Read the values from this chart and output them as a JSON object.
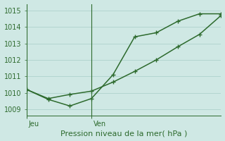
{
  "line1_x": [
    0,
    1,
    2,
    3,
    4,
    5,
    6,
    7,
    8,
    9
  ],
  "line1_y": [
    1010.2,
    1009.6,
    1009.2,
    1009.65,
    1011.1,
    1013.4,
    1013.65,
    1014.35,
    1014.8,
    1014.8
  ],
  "line2_x": [
    0,
    1,
    2,
    3,
    4,
    5,
    6,
    7,
    8,
    9
  ],
  "line2_y": [
    1010.2,
    1009.65,
    1009.9,
    1010.1,
    1010.65,
    1011.3,
    1012.0,
    1012.8,
    1013.55,
    1014.7
  ],
  "line_color": "#2d6a2d",
  "background_color": "#cfe8e4",
  "grid_color": "#a8cdc8",
  "tick_label_color": "#2d6a2d",
  "xlabel": "Pression niveau de la mer( hPa )",
  "yticks": [
    1009,
    1010,
    1011,
    1012,
    1013,
    1014,
    1015
  ],
  "ylim": [
    1008.6,
    1015.4
  ],
  "xlim": [
    0,
    9
  ],
  "vline_x": [
    0,
    3
  ],
  "vline_labels": [
    "Jeu",
    "Ven"
  ],
  "marker_size": 5,
  "linewidth": 1.1,
  "xlabel_fontsize": 8,
  "tick_fontsize": 7,
  "day_label_fontsize": 7
}
